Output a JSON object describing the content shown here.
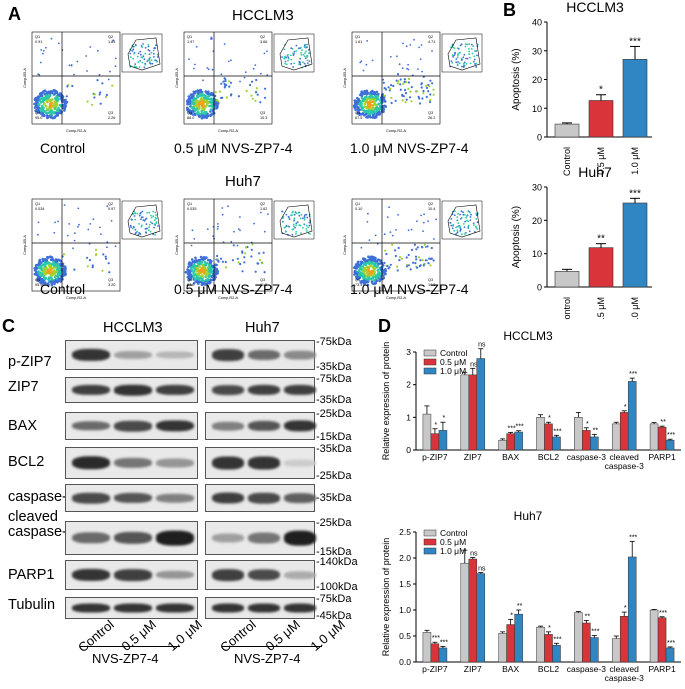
{
  "panels": {
    "a": "A",
    "b": "B",
    "c": "C",
    "d": "D"
  },
  "panelA": {
    "hcclm3_title": "HCCLM3",
    "huh7_title": "Huh7",
    "conditions": [
      "Control",
      "0.5 μM  NVS-ZP7-4",
      "1.0 μM NVS-ZP7-4"
    ],
    "conditions_huh7": [
      "Control",
      "0.5 μM  NVS-ZP7-4",
      "1.0 μM NVS-ZP7-4"
    ],
    "xaxis": "Comp-R2-A",
    "yaxis": "Comp-B5-A",
    "quads_hcclm3": [
      {
        "q1": "0.91",
        "q2": "1.89",
        "q3": "2.26",
        "q4": "95.0"
      },
      {
        "q1": "1.97",
        "q2": "3.66",
        "q3": "10.3",
        "q4": "86.0"
      },
      {
        "q1": "1.61",
        "q2": "4.71",
        "q3": "26.2",
        "q4": "67.5"
      }
    ],
    "quads_huh7": [
      {
        "q1": "0.034",
        "q2": "0.97",
        "q3": "3.20",
        "q4": "95.9"
      },
      {
        "q1": "0.035",
        "q2": "1.62",
        "q3": "11.3",
        "q4": "87.0"
      },
      {
        "q1": "0.10",
        "q2": "10.4",
        "q3": "16.1",
        "q4": "73.4"
      }
    ]
  },
  "chart_data": [
    {
      "type": "bar",
      "title": "HCCLM3",
      "ylabel": "Apoptosis (%)",
      "categories": [
        "Control",
        "0.5 μM",
        "1.0 μM"
      ],
      "values": [
        4.5,
        12.7,
        27.0
      ],
      "errors": [
        0.4,
        2.0,
        4.5
      ],
      "significance": [
        "",
        "*",
        "***"
      ],
      "ylim": [
        0,
        40
      ],
      "yticks": [
        "0",
        "10",
        "20",
        "30",
        "40"
      ],
      "colors": [
        "#c8c8c8",
        "#d9343a",
        "#2f86c3"
      ]
    },
    {
      "type": "bar",
      "title": "Huh7",
      "ylabel": "Apoptosis (%)",
      "categories": [
        "Control",
        "0.5 μM",
        "1.0 μM"
      ],
      "values": [
        4.7,
        11.8,
        25.2
      ],
      "errors": [
        0.6,
        1.2,
        1.4
      ],
      "significance": [
        "",
        "**",
        "***"
      ],
      "ylim": [
        0,
        30
      ],
      "yticks": [
        "0",
        "10",
        "20",
        "30"
      ],
      "colors": [
        "#c8c8c8",
        "#d9343a",
        "#2f86c3"
      ]
    },
    {
      "type": "bar",
      "title": "HCCLM3",
      "ylabel": "Relative expression of protein",
      "categories": [
        "p-ZIP7",
        "ZIP7",
        "BAX",
        "BCL2",
        "caspase-3",
        "cleaved caspase-3",
        "PARP1"
      ],
      "series": [
        {
          "name": "Control",
          "values": [
            1.1,
            2.3,
            0.3,
            1.0,
            1.0,
            0.8,
            0.8
          ],
          "errors": [
            0.25,
            0.08,
            0.04,
            0.08,
            0.15,
            0.05,
            0.04
          ],
          "sig": [
            "",
            "",
            "",
            "",
            "",
            "",
            ""
          ]
        },
        {
          "name": "0.5 μM",
          "values": [
            0.5,
            2.3,
            0.5,
            0.8,
            0.6,
            1.15,
            0.7
          ],
          "errors": [
            0.15,
            0.2,
            0.04,
            0.05,
            0.08,
            0.05,
            0.03
          ],
          "sig": [
            "*",
            "ns",
            "***",
            "*",
            "*",
            "*",
            "**"
          ]
        },
        {
          "name": "1.0 μM",
          "values": [
            0.6,
            2.8,
            0.55,
            0.4,
            0.4,
            2.1,
            0.3
          ],
          "errors": [
            0.25,
            0.3,
            0.04,
            0.05,
            0.08,
            0.1,
            0.03
          ],
          "sig": [
            "*",
            "ns",
            "***",
            "***",
            "**",
            "***",
            "***"
          ]
        }
      ],
      "ylim": [
        0,
        3
      ],
      "yticks": [
        "0",
        "1",
        "2",
        "3"
      ],
      "colors": [
        "#c8c8c8",
        "#d9343a",
        "#2f86c3"
      ],
      "legend": [
        "Control",
        "0.5 μM",
        "1.0 μM"
      ]
    },
    {
      "type": "bar",
      "title": "Huh7",
      "ylabel": "Relative expression of protein",
      "categories": [
        "p-ZIP7",
        "ZIP7",
        "BAX",
        "BCL2",
        "caspase-3",
        "cleaved caspase-3",
        "PARP1"
      ],
      "series": [
        {
          "name": "Control",
          "values": [
            0.57,
            1.9,
            0.55,
            0.67,
            0.95,
            0.45,
            1.0
          ],
          "errors": [
            0.04,
            0.25,
            0.03,
            0.02,
            0.02,
            0.05,
            0.01
          ],
          "sig": [
            "",
            "",
            "",
            "",
            "",
            "",
            ""
          ]
        },
        {
          "name": "0.5 μM",
          "values": [
            0.35,
            1.98,
            0.72,
            0.53,
            0.75,
            0.88,
            0.85
          ],
          "errors": [
            0.03,
            0.03,
            0.1,
            0.05,
            0.05,
            0.08,
            0.02
          ],
          "sig": [
            "***",
            "ns",
            "*",
            "*",
            "**",
            "*",
            "***"
          ]
        },
        {
          "name": "1.0 μM",
          "values": [
            0.27,
            1.7,
            0.92,
            0.32,
            0.47,
            2.02,
            0.27
          ],
          "errors": [
            0.03,
            0.02,
            0.08,
            0.04,
            0.04,
            0.3,
            0.02
          ],
          "sig": [
            "***",
            "ns",
            "**",
            "***",
            "***",
            "***",
            "***"
          ]
        }
      ],
      "ylim": [
        0,
        2.5
      ],
      "yticks": [
        "0.0",
        "0.5",
        "1.0",
        "1.5",
        "2.0",
        "2.5"
      ],
      "colors": [
        "#c8c8c8",
        "#d9343a",
        "#2f86c3"
      ],
      "legend": [
        "Control",
        "0.5 μM",
        "1.0 μM"
      ]
    }
  ],
  "panelC": {
    "hcclm3_title": "HCCLM3",
    "huh7_title": "Huh7",
    "proteins": [
      "p-ZIP7",
      "ZIP7",
      "BAX",
      "BCL2",
      "caspase-3",
      "cleaved caspase-3",
      "PARP1",
      "Tubulin"
    ],
    "mw": [
      [
        "75kDa",
        "35kDa"
      ],
      [
        "75kDa",
        "35kDa"
      ],
      [
        "25kDa",
        "15kDa"
      ],
      [
        "35kDa",
        "25kDa"
      ],
      [
        "35kDa"
      ],
      [
        "25kDa",
        "15kDa"
      ],
      [
        "140kDa",
        "100kDa"
      ],
      [
        "75kDa",
        "45kDa"
      ]
    ],
    "lanes": [
      "Control",
      "0.5 μM",
      "1.0 μM"
    ],
    "drug": "NVS-ZP7-4",
    "intensity_hcclm3": [
      [
        0.85,
        0.35,
        0.25
      ],
      [
        0.8,
        0.85,
        0.8
      ],
      [
        0.6,
        0.75,
        0.85
      ],
      [
        0.9,
        0.55,
        0.4
      ],
      [
        0.75,
        0.7,
        0.5
      ],
      [
        0.6,
        0.7,
        0.95
      ],
      [
        0.85,
        0.8,
        0.4
      ],
      [
        0.85,
        0.85,
        0.85
      ]
    ],
    "intensity_huh7": [
      [
        0.8,
        0.6,
        0.45
      ],
      [
        0.75,
        0.8,
        0.8
      ],
      [
        0.5,
        0.7,
        0.85
      ],
      [
        0.85,
        0.85,
        0.15
      ],
      [
        0.8,
        0.75,
        0.65
      ],
      [
        0.35,
        0.55,
        0.95
      ],
      [
        0.8,
        0.75,
        0.3
      ],
      [
        0.85,
        0.85,
        0.85
      ]
    ]
  }
}
